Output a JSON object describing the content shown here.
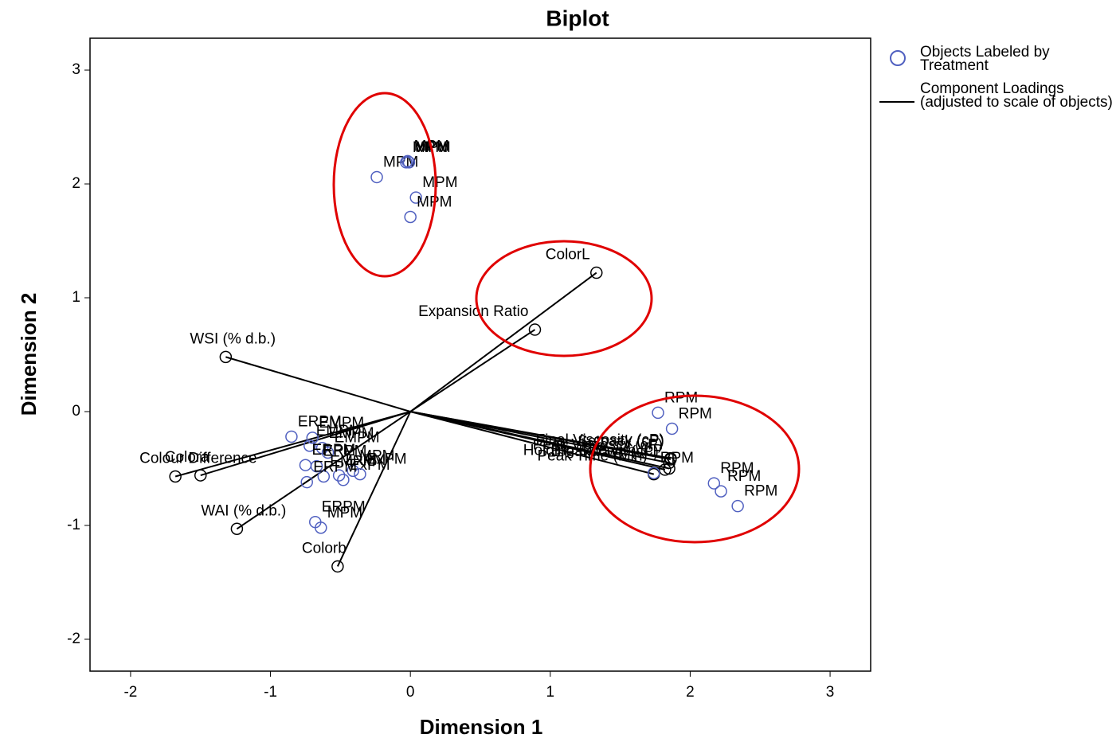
{
  "chart_data": {
    "type": "biplot",
    "title": "Biplot",
    "x_label": "Dimension 1",
    "y_label": "Dimension 2",
    "xlim": [
      -2.29,
      3.29
    ],
    "ylim": [
      -2.28,
      3.28
    ],
    "xticks": [
      -2,
      -1,
      0,
      1,
      2,
      3
    ],
    "yticks": [
      -2,
      -1,
      0,
      1,
      2,
      3
    ],
    "series": [
      {
        "name": "Objects Labeled by Treatment",
        "color": "#5060c0",
        "labels": [
          "MPM",
          "MPM",
          "MPM",
          "MPM",
          "MPM",
          "MPM",
          "RPM",
          "RPM",
          "RPM",
          "RPM",
          "RPM",
          "RPM",
          "ERPM",
          "EMPM",
          "EMPM",
          "EMPM",
          "EMPM",
          "ERPM",
          "MPM",
          "ERPM",
          "EMPM",
          "ExPM",
          "ExPM",
          "ExPM",
          "ERPM",
          "ERPM",
          "MPM"
        ],
        "x": [
          -0.24,
          -0.03,
          -0.01,
          0.04,
          0.0,
          -0.02,
          1.77,
          1.87,
          1.74,
          2.17,
          2.22,
          2.34,
          -0.85,
          -0.7,
          -0.72,
          -0.63,
          -0.59,
          -0.75,
          -0.41,
          -0.67,
          -0.62,
          -0.51,
          -0.48,
          -0.36,
          -0.74,
          -0.68,
          -0.64
        ],
        "y": [
          2.06,
          2.19,
          2.19,
          1.88,
          1.71,
          2.2,
          -0.01,
          -0.15,
          -0.54,
          -0.63,
          -0.7,
          -0.83,
          -0.22,
          -0.23,
          -0.3,
          -0.32,
          -0.36,
          -0.47,
          -0.52,
          -0.48,
          -0.57,
          -0.56,
          -0.6,
          -0.55,
          -0.62,
          -0.97,
          -1.02
        ]
      },
      {
        "name": "Component Loadings (adjusted to scale of objects)",
        "color": "#000000",
        "labels": [
          "ColorL",
          "Expansion Ratio",
          "WSI (% d.b.)",
          "Setback (cP)",
          "Final Viscosity (cP)",
          "Peak Viscosity (cP)",
          "Peak Time (Min)",
          "Holding Strength (cP",
          "Breakdown (cP)",
          "Colour Difference",
          "Colora",
          "WAI (% d.b.)",
          "Colorb"
        ],
        "x": [
          1.33,
          0.89,
          -1.32,
          1.86,
          1.86,
          1.85,
          1.74,
          1.85,
          1.82,
          -1.68,
          -1.5,
          -1.24,
          -0.52
        ],
        "y": [
          1.22,
          0.72,
          0.48,
          -0.42,
          -0.41,
          -0.45,
          -0.55,
          -0.5,
          -0.51,
          -0.57,
          -0.56,
          -1.03,
          -1.36
        ]
      }
    ]
  }
}
